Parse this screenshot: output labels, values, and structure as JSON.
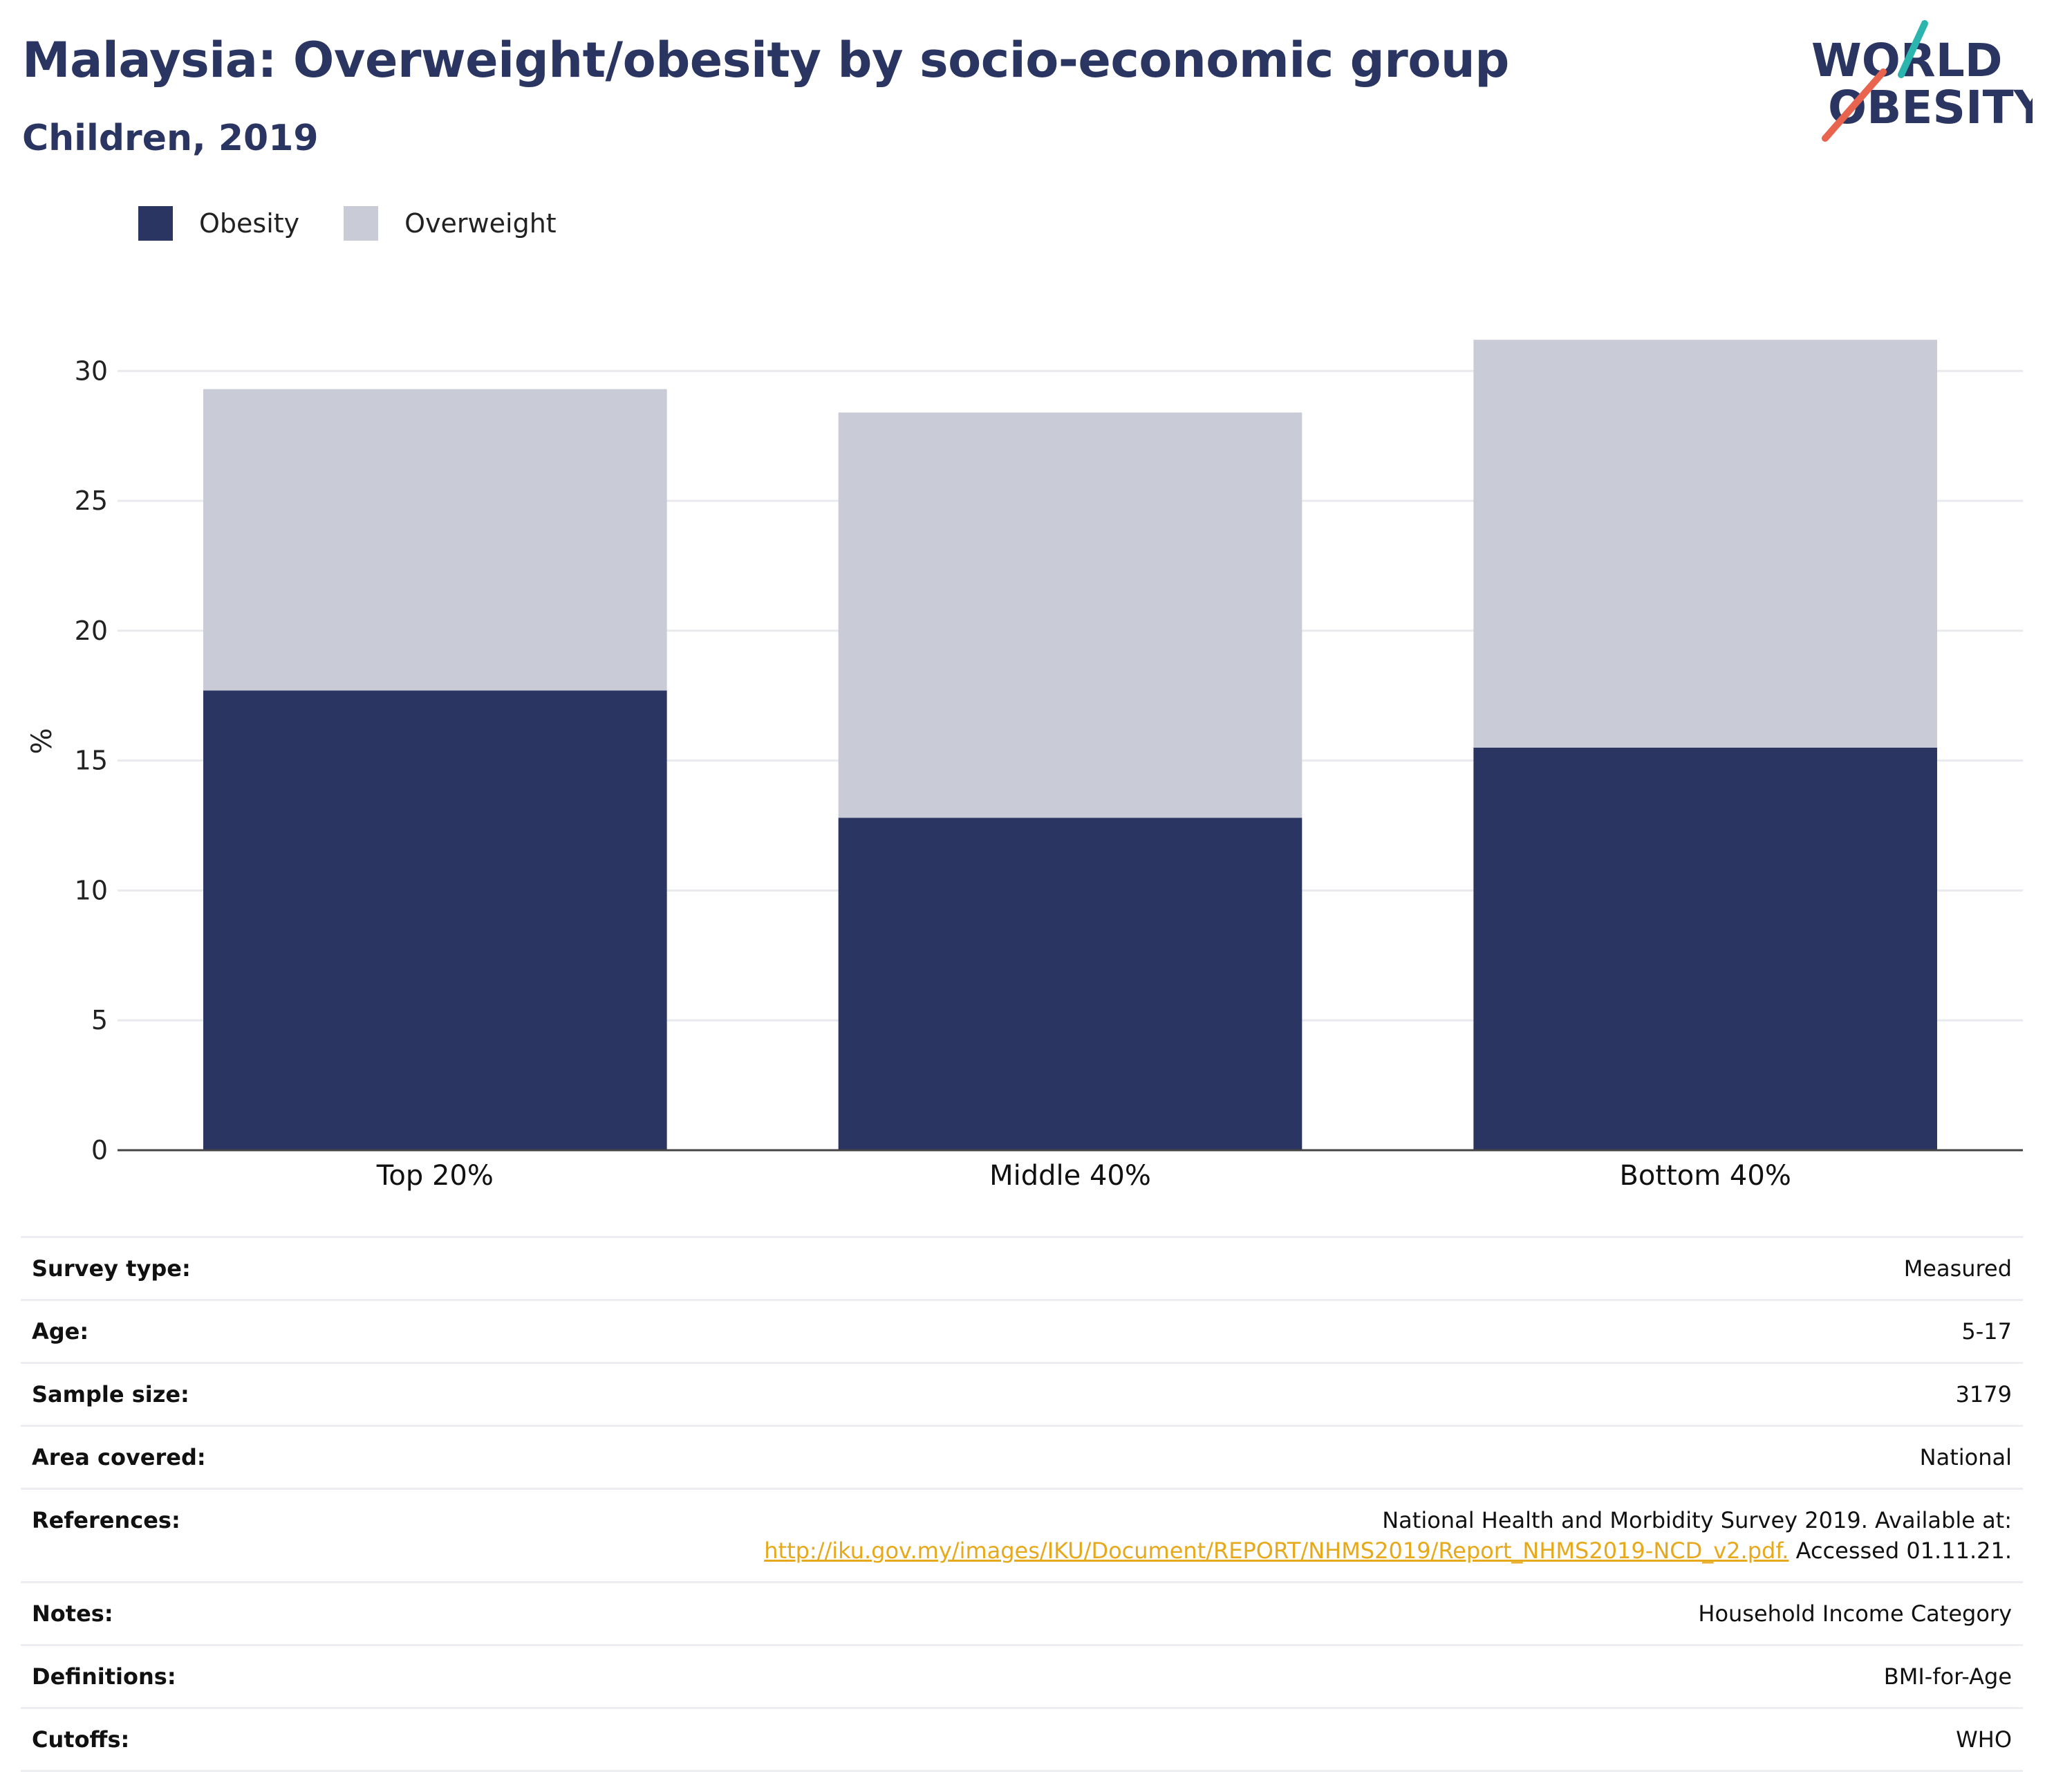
{
  "header": {
    "title": "Malaysia: Overweight/obesity by socio-economic group",
    "subtitle": "Children, 2019"
  },
  "logo": {
    "line1": "WORLD",
    "line2": "OBESITY",
    "icon": "world-obesity-logo"
  },
  "colors": {
    "obesity": "#2a3661",
    "overweight": "#c9cbd6",
    "link": "#e7a91c",
    "title": "#2a3661"
  },
  "chart_data": {
    "type": "bar",
    "stacked": true,
    "categories": [
      "Top 20%",
      "Middle 40%",
      "Bottom 40%"
    ],
    "series": [
      {
        "name": "Obesity",
        "values": [
          17.7,
          12.8,
          15.5
        ]
      },
      {
        "name": "Overweight",
        "values": [
          11.6,
          15.6,
          15.7
        ]
      }
    ],
    "ylabel": "%",
    "xlabel": "",
    "ylim": [
      0,
      31.5
    ],
    "yticks": [
      0,
      5,
      10,
      15,
      20,
      25,
      30
    ],
    "grid": true,
    "legend_position": "top-left"
  },
  "meta": [
    {
      "label": "Survey type:",
      "value": "Measured"
    },
    {
      "label": "Age:",
      "value": "5-17"
    },
    {
      "label": "Sample size:",
      "value": "3179"
    },
    {
      "label": "Area covered:",
      "value": "National"
    },
    {
      "label": "Notes:",
      "value": "Household Income Category"
    },
    {
      "label": "Definitions:",
      "value": "BMI-for-Age"
    },
    {
      "label": "Cutoffs:",
      "value": "WHO"
    }
  ],
  "references": {
    "label": "References:",
    "line1": "National Health and Morbidity Survey 2019. Available at:",
    "link": "http://iku.gov.my/images/IKU/Document/REPORT/NHMS2019/Report_NHMS2019-NCD_v2.pdf.",
    "suffix": " Accessed 01.11.21."
  }
}
